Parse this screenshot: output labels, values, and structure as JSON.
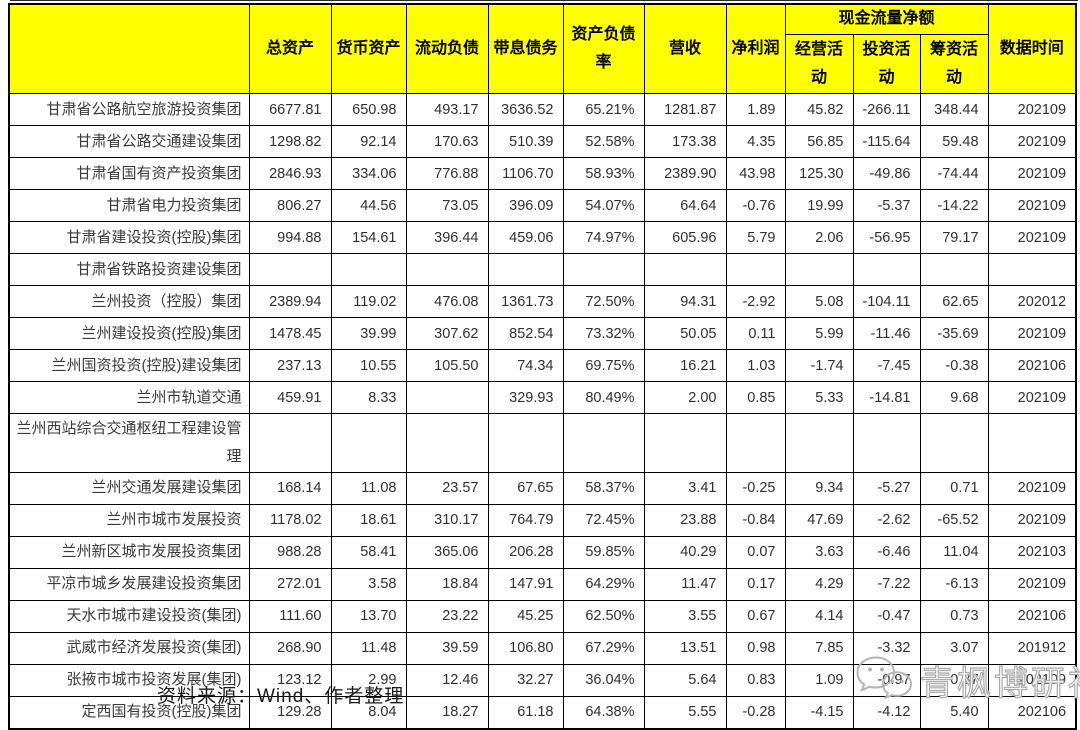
{
  "chart_data": {
    "type": "table",
    "title": "",
    "unit_note": "",
    "column_group": {
      "label": "现金流量净额",
      "span_columns": [
        "经营活动",
        "投资活动",
        "筹资活动"
      ]
    },
    "columns": [
      "",
      "总资产",
      "货币资产",
      "流动负债",
      "带息债务",
      "资产负债率",
      "营收",
      "净利润",
      "经营活动",
      "投资活动",
      "筹资活动",
      "数据时间"
    ],
    "rows": [
      [
        "甘肃省公路航空旅游投资集团",
        "6677.81",
        "650.98",
        "493.17",
        "3636.52",
        "65.21%",
        "1281.87",
        "1.89",
        "45.82",
        "-266.11",
        "348.44",
        "202109"
      ],
      [
        "甘肃省公路交通建设集团",
        "1298.82",
        "92.14",
        "170.63",
        "510.39",
        "52.58%",
        "173.38",
        "4.35",
        "56.85",
        "-115.64",
        "59.48",
        "202109"
      ],
      [
        "甘肃省国有资产投资集团",
        "2846.93",
        "334.06",
        "776.88",
        "1106.70",
        "58.93%",
        "2389.90",
        "43.98",
        "125.30",
        "-49.86",
        "-74.44",
        "202109"
      ],
      [
        "甘肃省电力投资集团",
        "806.27",
        "44.56",
        "73.05",
        "396.09",
        "54.07%",
        "64.64",
        "-0.76",
        "19.99",
        "-5.37",
        "-14.22",
        "202109"
      ],
      [
        "甘肃省建设投资(控股)集团",
        "994.88",
        "154.61",
        "396.44",
        "459.06",
        "74.97%",
        "605.96",
        "5.79",
        "2.06",
        "-56.95",
        "79.17",
        "202109"
      ],
      [
        "甘肃省铁路投资建设集团",
        "",
        "",
        "",
        "",
        "",
        "",
        "",
        "",
        "",
        "",
        ""
      ],
      [
        "兰州投资（控股）集团",
        "2389.94",
        "119.02",
        "476.08",
        "1361.73",
        "72.50%",
        "94.31",
        "-2.92",
        "5.08",
        "-104.11",
        "62.65",
        "202012"
      ],
      [
        "兰州建设投资(控股)集团",
        "1478.45",
        "39.99",
        "307.62",
        "852.54",
        "73.32%",
        "50.05",
        "0.11",
        "5.99",
        "-11.46",
        "-35.69",
        "202109"
      ],
      [
        "兰州国资投资(控股)建设集团",
        "237.13",
        "10.55",
        "105.50",
        "74.34",
        "69.75%",
        "16.21",
        "1.03",
        "-1.74",
        "-7.45",
        "-0.38",
        "202106"
      ],
      [
        "兰州市轨道交通",
        "459.91",
        "8.33",
        "",
        "329.93",
        "80.49%",
        "2.00",
        "0.85",
        "5.33",
        "-14.81",
        "9.68",
        "202109"
      ],
      [
        "兰州西站综合交通枢纽工程建设管理",
        "",
        "",
        "",
        "",
        "",
        "",
        "",
        "",
        "",
        "",
        ""
      ],
      [
        "兰州交通发展建设集团",
        "168.14",
        "11.08",
        "23.57",
        "67.65",
        "58.37%",
        "3.41",
        "-0.25",
        "9.34",
        "-5.27",
        "0.71",
        "202109"
      ],
      [
        "兰州市城市发展投资",
        "1178.02",
        "18.61",
        "310.17",
        "764.79",
        "72.45%",
        "23.88",
        "-0.84",
        "47.69",
        "-2.62",
        "-65.52",
        "202109"
      ],
      [
        "兰州新区城市发展投资集团",
        "988.28",
        "58.41",
        "365.06",
        "206.28",
        "59.85%",
        "40.29",
        "0.07",
        "3.63",
        "-6.46",
        "11.04",
        "202103"
      ],
      [
        "平凉市城乡发展建设投资集团",
        "272.01",
        "3.58",
        "18.84",
        "147.91",
        "64.29%",
        "11.47",
        "0.17",
        "4.29",
        "-7.22",
        "-6.13",
        "202109"
      ],
      [
        "天水市城市建设投资(集团)",
        "111.60",
        "13.70",
        "23.22",
        "45.25",
        "62.50%",
        "3.55",
        "0.67",
        "4.14",
        "-0.47",
        "0.73",
        "202106"
      ],
      [
        "武威市经济发展投资(集团)",
        "268.90",
        "11.48",
        "39.59",
        "106.80",
        "67.29%",
        "13.51",
        "0.98",
        "7.85",
        "-3.32",
        "3.07",
        "201912"
      ],
      [
        "张掖市城市投资发展(集团)",
        "123.12",
        "2.99",
        "12.46",
        "32.27",
        "36.04%",
        "5.64",
        "0.83",
        "1.09",
        "-0.97",
        "0.37",
        "202109"
      ],
      [
        "定西国有投资(控股)集团",
        "129.28",
        "8.04",
        "18.27",
        "61.18",
        "64.38%",
        "5.55",
        "-0.28",
        "-4.15",
        "-4.12",
        "5.40",
        "202106"
      ]
    ],
    "layout_hints": {
      "header_background": "#FFFF00",
      "grid": true
    }
  },
  "footer": {
    "source_note": "资料来源：Wind、作者整理"
  },
  "watermark": {
    "text": "青枫博研社",
    "icon": "wechat-icon"
  },
  "colors": {
    "header_bg": "#FFFF00",
    "border": "#000000",
    "text": "#333333",
    "watermark": "#ABABAB"
  }
}
